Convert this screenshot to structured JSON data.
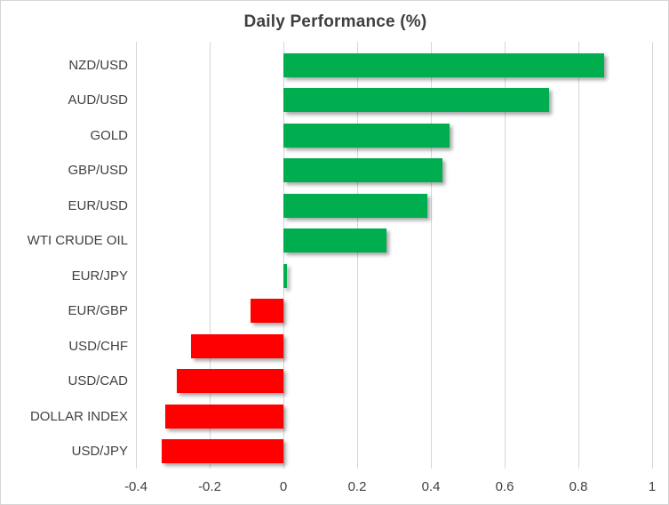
{
  "chart_data": {
    "type": "bar",
    "orientation": "horizontal",
    "title": "Daily Performance (%)",
    "categories": [
      "NZD/USD",
      "AUD/USD",
      "GOLD",
      "GBP/USD",
      "EUR/USD",
      "WTI CRUDE OIL",
      "EUR/JPY",
      "EUR/GBP",
      "USD/CHF",
      "USD/CAD",
      "DOLLAR INDEX",
      "USD/JPY"
    ],
    "values": [
      0.87,
      0.72,
      0.45,
      0.43,
      0.39,
      0.28,
      0.01,
      -0.09,
      -0.25,
      -0.29,
      -0.32,
      -0.33
    ],
    "xlim": [
      -0.4,
      1.0
    ],
    "xticks": [
      -0.4,
      -0.2,
      0,
      0.2,
      0.4,
      0.6,
      0.8,
      1
    ],
    "xtick_labels": [
      "-0.4",
      "-0.2",
      "0",
      "0.2",
      "0.4",
      "0.6",
      "0.8",
      "1"
    ],
    "grid": true,
    "legend": false,
    "colors": {
      "positive": "#00ae50",
      "negative": "#ff0000",
      "gridline": "#d6d6d6",
      "label_text": "#404040",
      "title_text": "#3f3f3f",
      "frame_border": "#d5d5d5",
      "background": "#ffffff"
    }
  }
}
